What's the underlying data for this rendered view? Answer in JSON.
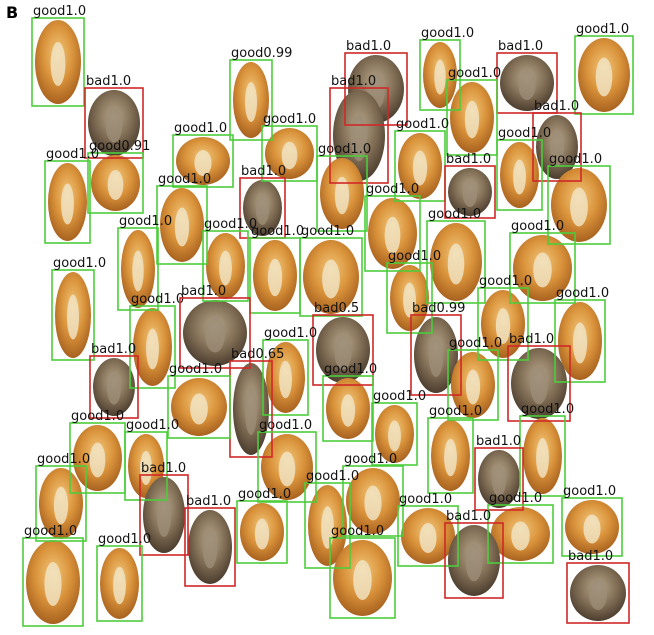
{
  "panel_label": "B",
  "detections": [
    {
      "label": "good1.0",
      "color": "#4ccd3c"
    },
    {
      "label": "good0.99",
      "color": "#4ccd3c"
    },
    {
      "label": "bad1.0",
      "color": "#d02828"
    },
    {
      "label": "good1.0",
      "color": "#4ccd3c"
    },
    {
      "label": "bad1.0",
      "color": "#d02828"
    },
    {
      "label": "good1.0",
      "color": "#4ccd3c"
    },
    {
      "label": "bad1.0",
      "color": "#d02828"
    },
    {
      "label": "bad1.0",
      "color": "#d02828"
    },
    {
      "label": "good1.0",
      "color": "#4ccd3c"
    },
    {
      "label": "bad1.0",
      "color": "#d02828"
    },
    {
      "label": "good1.0",
      "color": "#4ccd3c"
    },
    {
      "label": "good1.0",
      "color": "#4ccd3c"
    },
    {
      "label": "good1.0",
      "color": "#4ccd3c"
    },
    {
      "label": "good1.0",
      "color": "#4ccd3c"
    },
    {
      "label": "good0.91",
      "color": "#4ccd3c"
    },
    {
      "label": "good1.0",
      "color": "#4ccd3c"
    },
    {
      "label": "good1.0",
      "color": "#4ccd3c"
    },
    {
      "label": "bad1.0",
      "color": "#d02828"
    },
    {
      "label": "good1.0",
      "color": "#4ccd3c"
    },
    {
      "label": "good1.0",
      "color": "#4ccd3c"
    },
    {
      "label": "bad1.0",
      "color": "#d02828"
    },
    {
      "label": "good1.0",
      "color": "#4ccd3c"
    },
    {
      "label": "good1.0",
      "color": "#4ccd3c"
    },
    {
      "label": "good1.0",
      "color": "#4ccd3c"
    },
    {
      "label": "good1.0",
      "color": "#4ccd3c"
    },
    {
      "label": "good1.0",
      "color": "#4ccd3c"
    },
    {
      "label": "good1.0",
      "color": "#4ccd3c"
    },
    {
      "label": "good1.0",
      "color": "#4ccd3c"
    },
    {
      "label": "good1.0",
      "color": "#4ccd3c"
    },
    {
      "label": "good1.0",
      "color": "#4ccd3c"
    },
    {
      "label": "good1.0",
      "color": "#4ccd3c"
    },
    {
      "label": "good1.0",
      "color": "#4ccd3c"
    },
    {
      "label": "good1.0",
      "color": "#4ccd3c"
    },
    {
      "label": "bad1.0",
      "color": "#d02828"
    },
    {
      "label": "bad0.5",
      "color": "#d02828"
    },
    {
      "label": "bad0.99",
      "color": "#d02828"
    },
    {
      "label": "good1.0",
      "color": "#4ccd3c"
    },
    {
      "label": "bad0.65",
      "color": "#d02828"
    },
    {
      "label": "good1.0",
      "color": "#4ccd3c"
    },
    {
      "label": "bad1.0",
      "color": "#d02828"
    },
    {
      "label": "good1.0",
      "color": "#4ccd3c"
    },
    {
      "label": "bad1.0",
      "color": "#d02828"
    },
    {
      "label": "good1.0",
      "color": "#4ccd3c"
    },
    {
      "label": "good1.0",
      "color": "#4ccd3c"
    },
    {
      "label": "good1.0",
      "color": "#4ccd3c"
    },
    {
      "label": "good1.0",
      "color": "#4ccd3c"
    },
    {
      "label": "good1.0",
      "color": "#4ccd3c"
    },
    {
      "label": "good1.0",
      "color": "#4ccd3c"
    },
    {
      "label": "good1.0",
      "color": "#4ccd3c"
    },
    {
      "label": "bad1.0",
      "color": "#d02828"
    },
    {
      "label": "good1.0",
      "color": "#4ccd3c"
    },
    {
      "label": "bad1.0",
      "color": "#d02828"
    },
    {
      "label": "good1.0",
      "color": "#4ccd3c"
    },
    {
      "label": "good1.0",
      "color": "#4ccd3c"
    },
    {
      "label": "bad1.0",
      "color": "#d02828"
    },
    {
      "label": "good1.0",
      "color": "#4ccd3c"
    },
    {
      "label": "good1.0",
      "color": "#4ccd3c"
    },
    {
      "label": "good1.0",
      "color": "#4ccd3c"
    },
    {
      "label": "good1.0",
      "color": "#4ccd3c"
    },
    {
      "label": "good1.0",
      "color": "#4ccd3c"
    },
    {
      "label": "good1.0",
      "color": "#4ccd3c"
    },
    {
      "label": "good1.0",
      "color": "#4ccd3c"
    },
    {
      "label": "bad1.0",
      "color": "#d02828"
    },
    {
      "label": "bad1.0",
      "color": "#d02828"
    }
  ]
}
